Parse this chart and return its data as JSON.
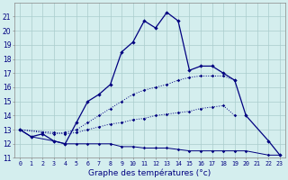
{
  "title": "Graphe des températures (°c)",
  "background_color": "#d4eeee",
  "grid_color": "#aacccc",
  "line_color": "#000080",
  "xlabel_color": "#000080",
  "x_labels": [
    "0",
    "1",
    "2",
    "3",
    "4",
    "5",
    "6",
    "7",
    "8",
    "9",
    "10",
    "11",
    "12",
    "13",
    "14",
    "15",
    "16",
    "17",
    "18",
    "19",
    "20",
    "21",
    "22",
    "23"
  ],
  "ylim": [
    11,
    22
  ],
  "yticks": [
    11,
    12,
    13,
    14,
    15,
    16,
    17,
    18,
    19,
    20,
    21
  ],
  "hours": [
    0,
    1,
    2,
    3,
    4,
    5,
    6,
    7,
    8,
    9,
    10,
    11,
    12,
    13,
    14,
    15,
    16,
    17,
    18,
    19,
    20,
    21,
    22,
    23
  ],
  "line1": [
    13.0,
    12.5,
    12.7,
    12.2,
    12.0,
    13.5,
    15.0,
    15.5,
    16.2,
    18.5,
    19.2,
    20.7,
    20.2,
    21.3,
    20.7,
    17.2,
    17.5,
    17.5,
    17.0,
    16.5,
    14.0,
    null,
    12.2,
    11.2
  ],
  "line2": [
    13.0,
    null,
    12.8,
    12.7,
    12.8,
    13.0,
    13.5,
    14.0,
    14.5,
    15.0,
    15.5,
    15.8,
    16.0,
    16.2,
    16.5,
    16.7,
    16.8,
    16.8,
    16.8,
    16.5,
    null,
    null,
    null,
    null
  ],
  "line3": [
    13.0,
    null,
    null,
    12.8,
    12.7,
    12.8,
    13.0,
    13.2,
    13.4,
    13.5,
    13.7,
    13.8,
    14.0,
    14.1,
    14.2,
    14.3,
    14.5,
    14.6,
    14.7,
    14.0,
    null,
    null,
    null,
    null
  ],
  "line4": [
    13.0,
    12.5,
    null,
    12.2,
    12.0,
    12.0,
    12.0,
    12.0,
    12.0,
    11.8,
    11.8,
    11.7,
    11.7,
    11.7,
    11.6,
    11.5,
    11.5,
    11.5,
    11.5,
    11.5,
    11.5,
    null,
    11.2,
    11.2
  ]
}
